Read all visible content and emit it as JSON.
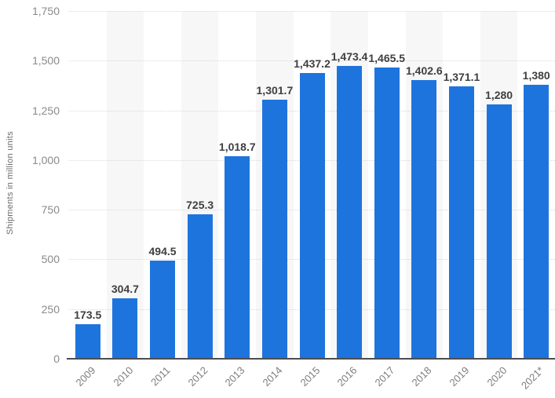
{
  "chart_data": {
    "type": "bar",
    "title": "",
    "xlabel": "",
    "ylabel": "Shipments in million units",
    "categories": [
      "2009",
      "2010",
      "2011",
      "2012",
      "2013",
      "2014",
      "2015",
      "2016",
      "2017",
      "2018",
      "2019",
      "2020",
      "2021*"
    ],
    "values": [
      173.5,
      304.7,
      494.5,
      725.3,
      1018.7,
      1301.7,
      1437.2,
      1473.4,
      1465.5,
      1402.6,
      1371.1,
      1280,
      1380
    ],
    "value_labels": [
      "173.5",
      "304.7",
      "494.5",
      "725.3",
      "1,018.7",
      "1,301.7",
      "1,437.2",
      "1,473.4",
      "1,465.5",
      "1,402.6",
      "1,371.1",
      "1,280",
      "1,380"
    ],
    "ylim": [
      0,
      1750
    ],
    "yticks": [
      0,
      250,
      500,
      750,
      1000,
      1250,
      1500,
      1750
    ],
    "ytick_labels": [
      "0",
      "250",
      "500",
      "750",
      "1,000",
      "1,250",
      "1,500",
      "1,750"
    ],
    "grid": "horizontal-dotted",
    "alternating_column_bands": true,
    "legend": "none",
    "colors": {
      "bar": "#1e74dd",
      "band": "#f7f7f7",
      "gridline": "#d9d9d9",
      "axis_line": "#4d4d4d",
      "value_label": "#3f3f3f",
      "tick_label": "#8a8a8a",
      "x_tick_label": "#7d7d7d",
      "y_title": "#6b6b6b"
    }
  }
}
